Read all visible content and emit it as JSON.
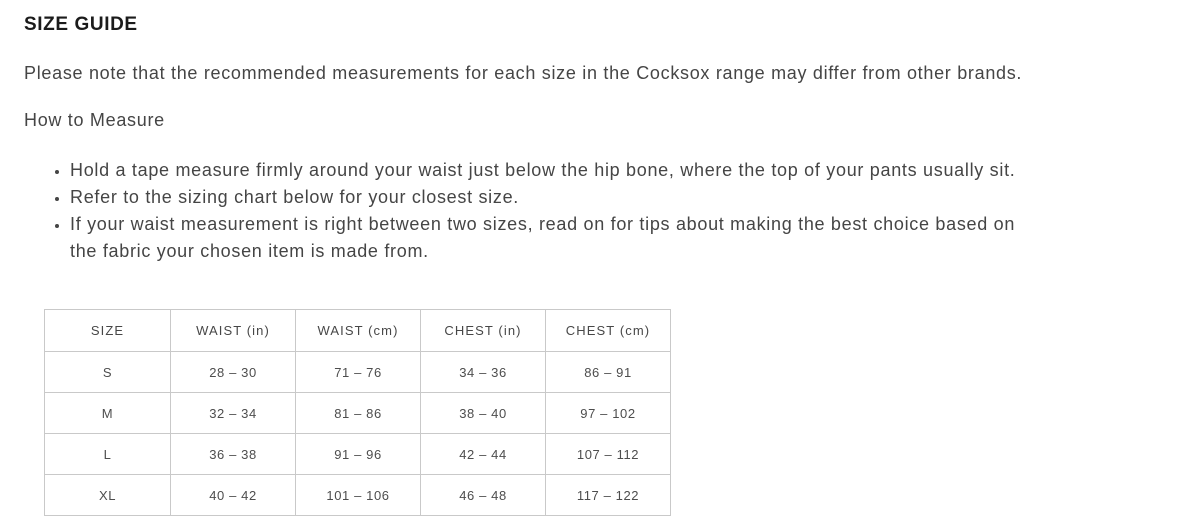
{
  "page": {
    "title": "SIZE GUIDE",
    "intro": "Please note that the recommended measurements for each size in the Cocksox range may differ from other brands.",
    "how_to_measure_heading": "How to Measure",
    "bullets": [
      "Hold a tape measure firmly around your waist just below the hip bone, where the top of your pants usually sit.",
      "Refer to the sizing chart below for your closest size.",
      "If your waist measurement is right between two sizes, read on for tips about making the best choice based on the fabric your chosen item is made from."
    ]
  },
  "size_table": {
    "columns": [
      "SIZE",
      "WAIST (in)",
      "WAIST (cm)",
      "CHEST (in)",
      "CHEST (cm)"
    ],
    "rows": [
      [
        "S",
        "28 – 30",
        "71 – 76",
        "34 – 36",
        "86 – 91"
      ],
      [
        "M",
        "32 – 34",
        "81 – 86",
        "38 – 40",
        "97 – 102"
      ],
      [
        "L",
        "36 – 38",
        "91 – 96",
        "42 – 44",
        "107 – 112"
      ],
      [
        "XL",
        "40 – 42",
        "101 – 106",
        "46 – 48",
        "117 – 122"
      ]
    ]
  },
  "colors": {
    "title_text": "#1b1b1b",
    "body_text": "#454545",
    "table_text": "#4d4d4d",
    "table_border": "#c9c9c9",
    "background": "#ffffff"
  }
}
